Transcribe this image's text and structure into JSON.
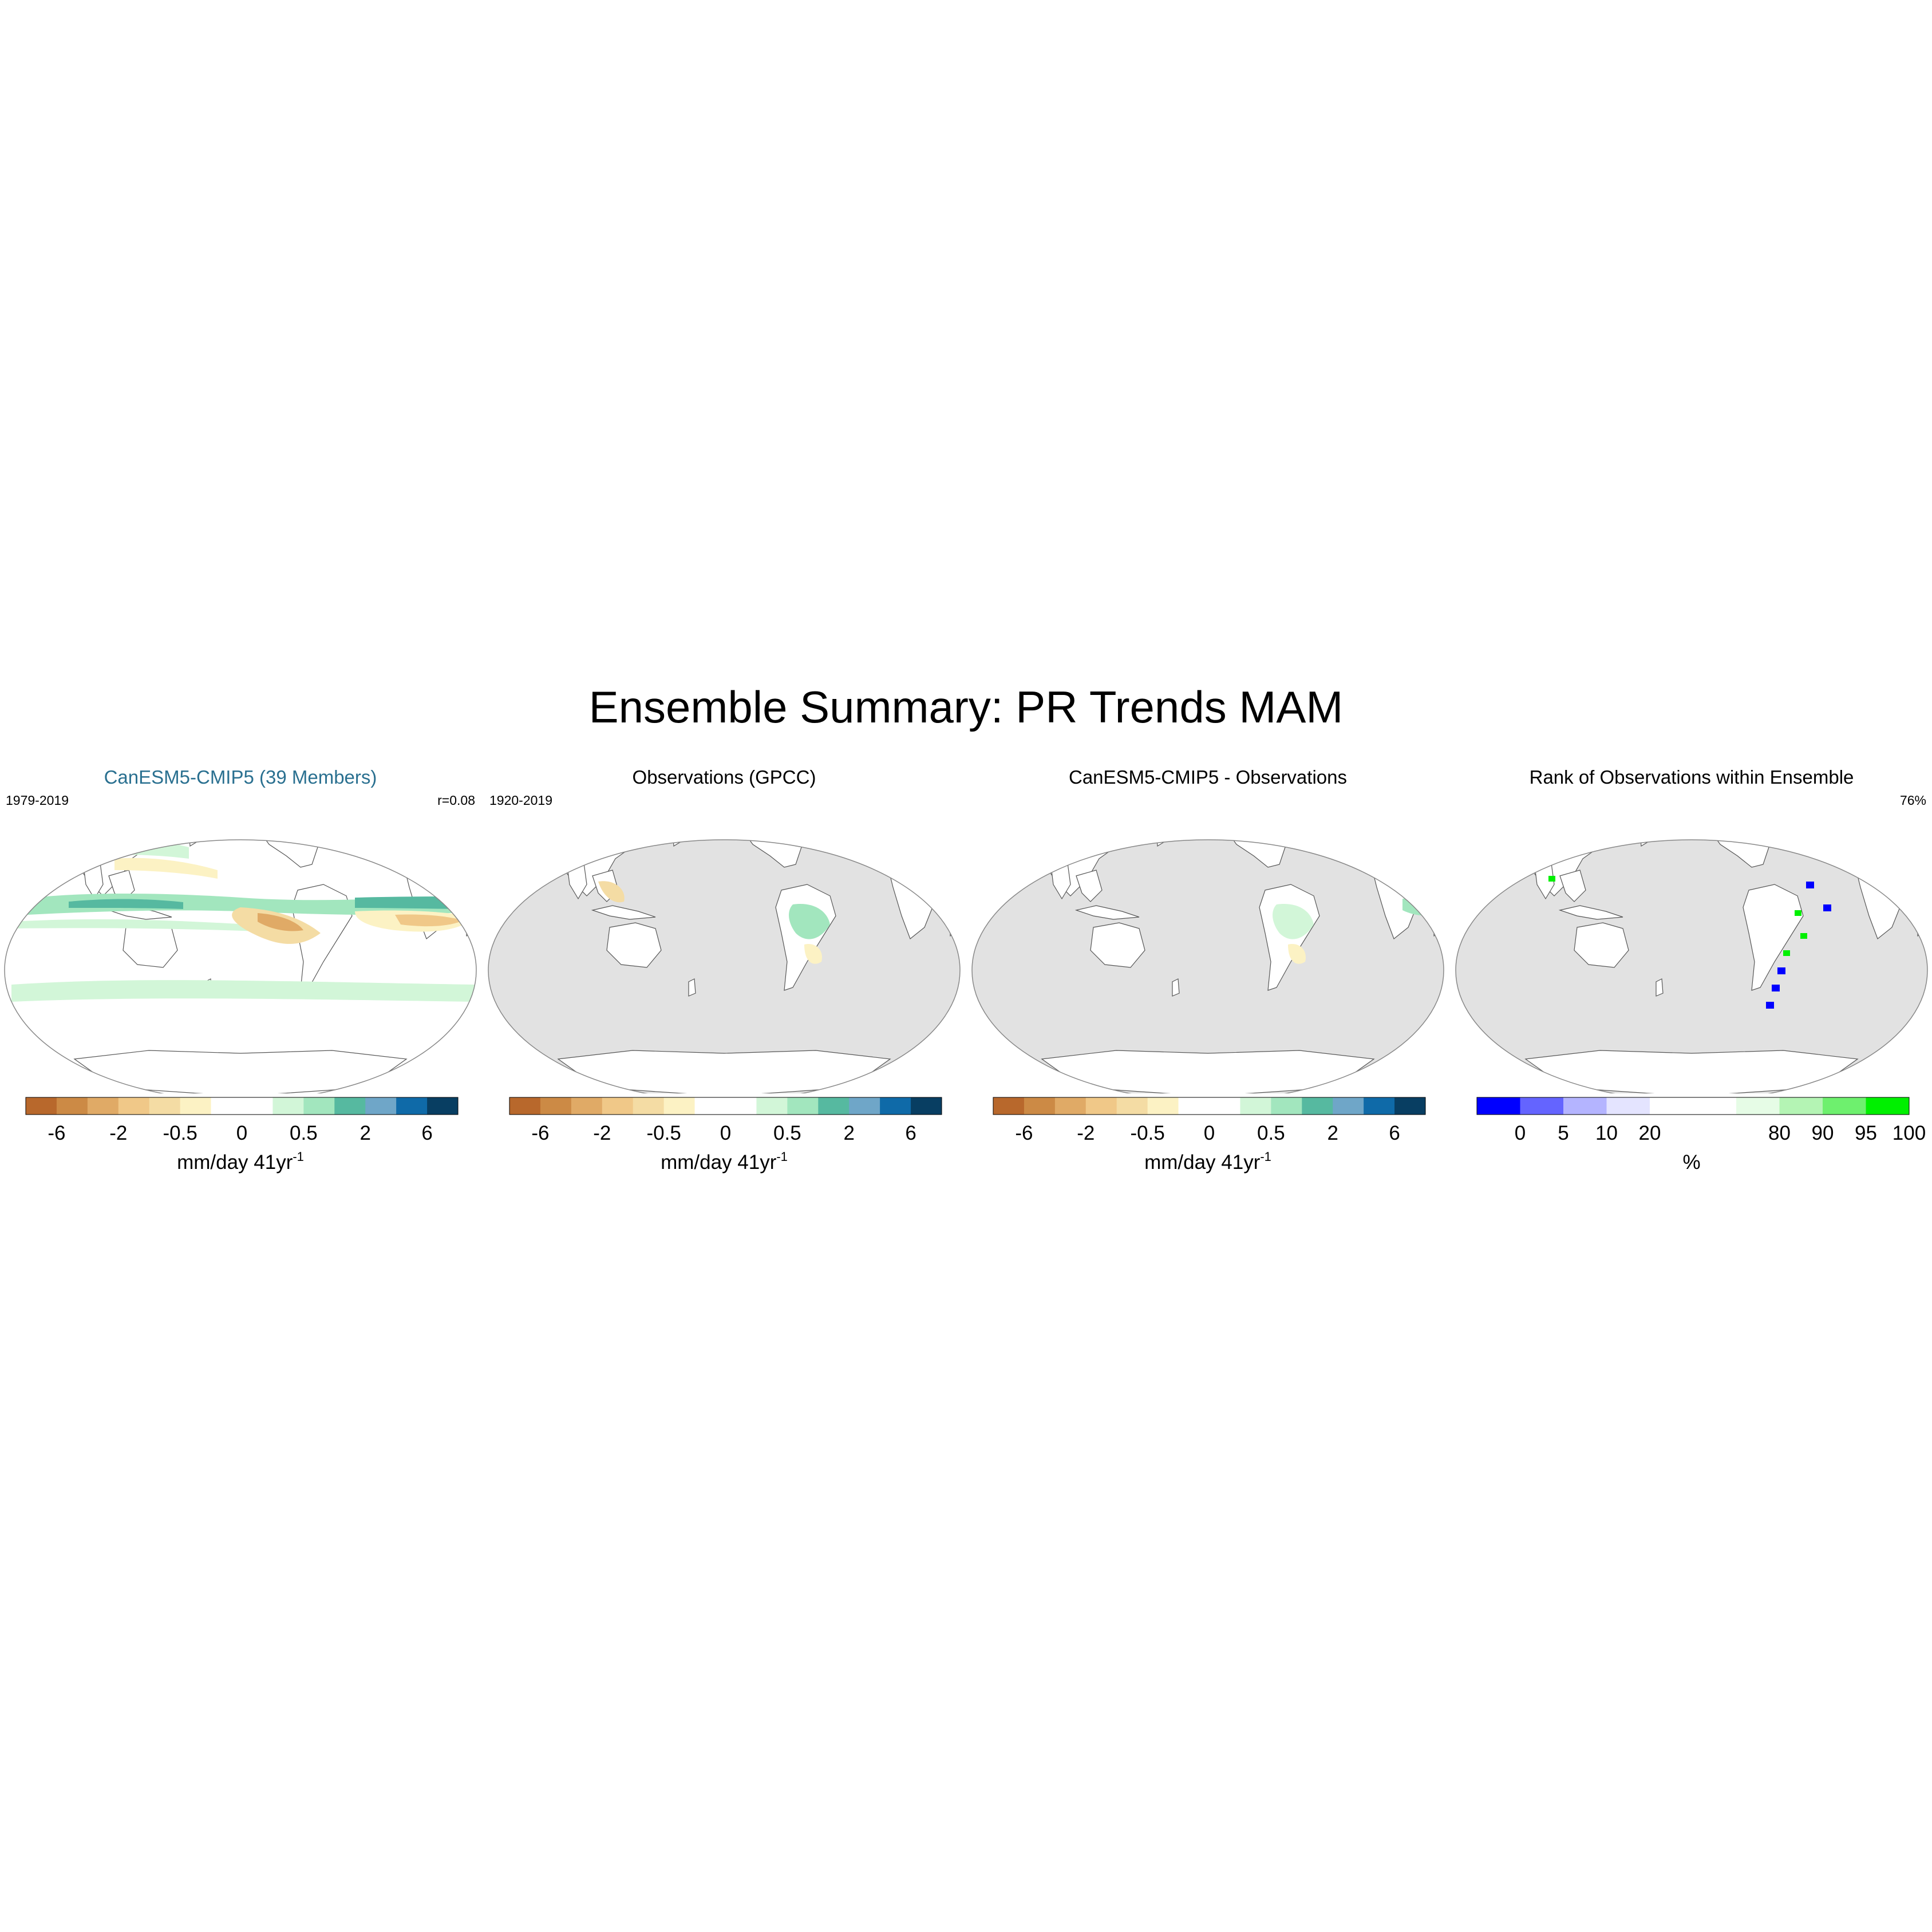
{
  "title": "Ensemble Summary: PR Trends MAM",
  "panels": [
    {
      "title": "CanESM5-CMIP5 (39 Members)",
      "title_color": "#2a7090",
      "left": "1979-2019",
      "right": "r=0.08",
      "map": "model"
    },
    {
      "title": "Observations (GPCC)",
      "title_color": "#000000",
      "left": "1920-2019",
      "right": "",
      "map": "obs"
    },
    {
      "title": "CanESM5-CMIP5 - Observations",
      "title_color": "#000000",
      "left": "",
      "right": "",
      "map": "diff"
    },
    {
      "title": "Rank of Observations within Ensemble",
      "title_color": "#000000",
      "left": "",
      "right": "76%",
      "map": "rank"
    }
  ],
  "trend_colorbar": {
    "colors": [
      "#b8682c",
      "#cc8a45",
      "#e0aa66",
      "#f0c888",
      "#f4dca4",
      "#fcf2c4",
      "#ffffff",
      "#ffffff",
      "#d2f6d8",
      "#a2e6be",
      "#56b9a0",
      "#6fa6c8",
      "#0f6aa8",
      "#083e62"
    ],
    "ticks": [
      "-6",
      "-2",
      "-0.5",
      "0",
      "0.5",
      "2",
      "6"
    ],
    "tick_boundary_index": [
      1,
      3,
      5,
      7,
      9,
      11,
      13
    ],
    "units_main": "mm/day 41yr",
    "units_sup": "-1"
  },
  "rank_colorbar": {
    "colors": [
      "#0000ff",
      "#6464ff",
      "#b4b4ff",
      "#e4e4ff",
      "#ffffff",
      "#ffffff",
      "#e6fce6",
      "#b4f4b4",
      "#6ef06e",
      "#00f000"
    ],
    "ticks": [
      "0",
      "5",
      "10",
      "20",
      "80",
      "90",
      "95",
      "100"
    ],
    "tick_boundary_index": [
      1,
      2,
      3,
      4,
      7,
      8,
      9,
      10
    ],
    "units_main": "%",
    "units_sup": ""
  },
  "colors": {
    "ocean_masked": "#e2e2e2",
    "coast": "#555555"
  }
}
